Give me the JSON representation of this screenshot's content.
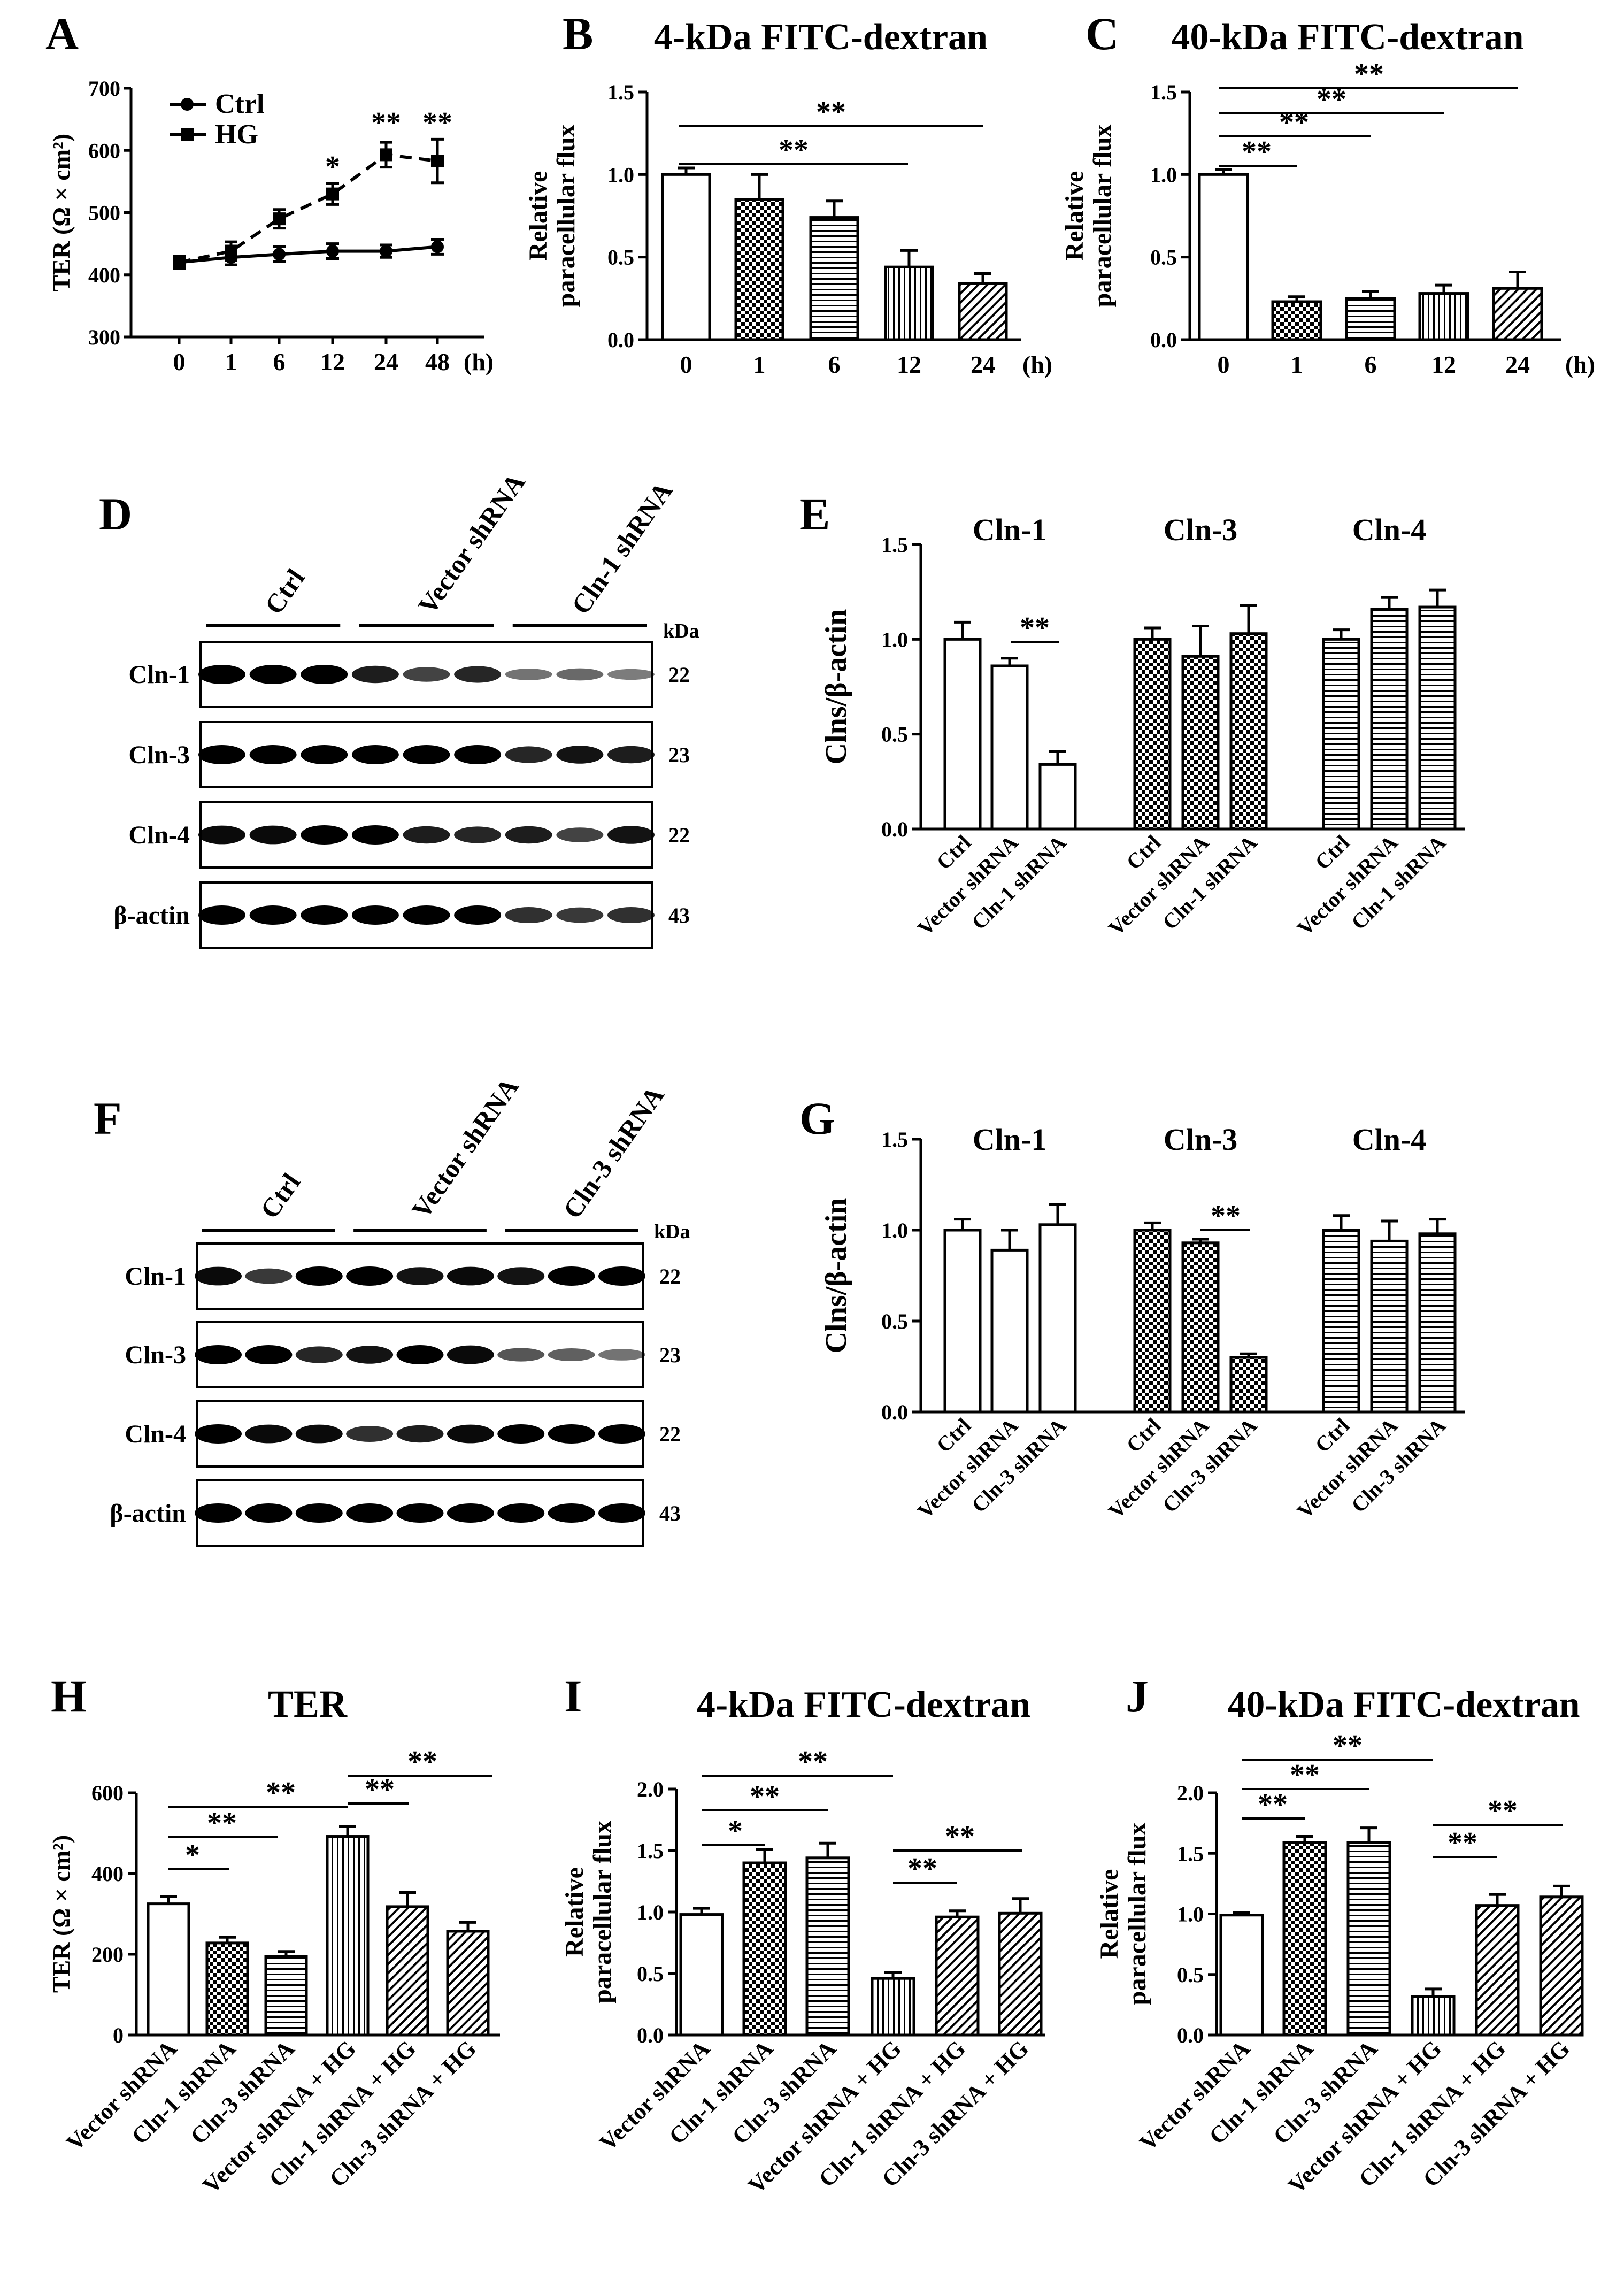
{
  "colors": {
    "ink": "#000000",
    "background": "#ffffff"
  },
  "chart_data": [
    {
      "panel": "A",
      "type": "line",
      "title": "",
      "ylabel": "TER (Ω × cm²)",
      "xlabel": "",
      "x_unit": "(h)",
      "categories": [
        "0",
        "1",
        "6",
        "12",
        "24",
        "48"
      ],
      "ylim": [
        300,
        700
      ],
      "yticks": [
        "300",
        "400",
        "500",
        "600",
        "700"
      ],
      "series": [
        {
          "name": "Ctrl",
          "style": "solid",
          "marker": "circle",
          "values": [
            420,
            428,
            433,
            438,
            438,
            445
          ],
          "errors": [
            10,
            12,
            12,
            12,
            10,
            12
          ]
        },
        {
          "name": "HG",
          "style": "dashed",
          "marker": "square",
          "values": [
            420,
            438,
            490,
            530,
            593,
            583
          ],
          "errors": [
            10,
            15,
            15,
            17,
            20,
            35
          ]
        }
      ],
      "significance": [
        "*",
        "**",
        "**"
      ]
    },
    {
      "panel": "B",
      "type": "bar",
      "title": "4-kDa FITC-dextran",
      "ylabel": "Relative paracellular flux",
      "x_unit": "(h)",
      "categories": [
        "0",
        "1",
        "6",
        "12",
        "24"
      ],
      "values": [
        1.0,
        0.85,
        0.74,
        0.44,
        0.34
      ],
      "errors": [
        0.04,
        0.15,
        0.1,
        0.1,
        0.06
      ],
      "ylim": [
        0,
        1.5
      ],
      "yticks": [
        "0.0",
        "0.5",
        "1.0",
        "1.5"
      ],
      "significance": [
        "**",
        "**"
      ]
    },
    {
      "panel": "C",
      "type": "bar",
      "title": "40-kDa FITC-dextran",
      "ylabel": "Relative paracellular flux",
      "x_unit": "(h)",
      "categories": [
        "0",
        "1",
        "6",
        "12",
        "24"
      ],
      "values": [
        1.0,
        0.23,
        0.25,
        0.28,
        0.31
      ],
      "errors": [
        0.03,
        0.03,
        0.04,
        0.05,
        0.1
      ],
      "ylim": [
        0,
        1.5
      ],
      "yticks": [
        "0.0",
        "0.5",
        "1.0",
        "1.5"
      ],
      "significance": [
        "**",
        "**",
        "**",
        "**"
      ]
    },
    {
      "panel": "E",
      "type": "bar",
      "ylabel": "Clns/β-actin",
      "groups": [
        "Cln-1",
        "Cln-3",
        "Cln-4"
      ],
      "categories": [
        "Ctrl",
        "Vector shRNA",
        "Cln-1 shRNA",
        "Ctrl",
        "Vector shRNA",
        "Cln-1 shRNA",
        "Ctrl",
        "Vector shRNA",
        "Cln-1 shRNA"
      ],
      "values": [
        1.0,
        0.86,
        0.34,
        1.0,
        0.91,
        1.03,
        1.0,
        1.16,
        1.17
      ],
      "errors": [
        0.09,
        0.04,
        0.07,
        0.06,
        0.16,
        0.15,
        0.05,
        0.06,
        0.09
      ],
      "ylim": [
        0,
        1.5
      ],
      "yticks": [
        "0.0",
        "0.5",
        "1.0",
        "1.5"
      ],
      "significance": [
        "**"
      ]
    },
    {
      "panel": "G",
      "type": "bar",
      "ylabel": "Clns/β-actin",
      "groups": [
        "Cln-1",
        "Cln-3",
        "Cln-4"
      ],
      "categories": [
        "Ctrl",
        "Vector shRNA",
        "Cln-3 shRNA",
        "Ctrl",
        "Vector shRNA",
        "Cln-3 shRNA",
        "Ctrl",
        "Vector shRNA",
        "Cln-3 shRNA"
      ],
      "values": [
        1.0,
        0.89,
        1.03,
        1.0,
        0.93,
        0.3,
        1.0,
        0.94,
        0.98
      ],
      "errors": [
        0.06,
        0.11,
        0.11,
        0.04,
        0.02,
        0.02,
        0.08,
        0.11,
        0.08
      ],
      "ylim": [
        0,
        1.5
      ],
      "yticks": [
        "0.0",
        "0.5",
        "1.0",
        "1.5"
      ],
      "significance": [
        "**"
      ]
    },
    {
      "panel": "H",
      "type": "bar",
      "title": "TER",
      "ylabel": "TER (Ω × cm²)",
      "categories": [
        "Vector shRNA",
        "Cln-1 shRNA",
        "Cln-3 shRNA",
        "Vector shRNA + HG",
        "Cln-1 shRNA + HG",
        "Cln-3 shRNA + HG"
      ],
      "values": [
        325,
        228,
        195,
        492,
        318,
        257
      ],
      "errors": [
        18,
        14,
        12,
        25,
        35,
        22
      ],
      "ylim": [
        0,
        600
      ],
      "yticks": [
        "0",
        "200",
        "400",
        "600"
      ],
      "significance": [
        "*",
        "**",
        "**",
        "**",
        "**"
      ]
    },
    {
      "panel": "I",
      "type": "bar",
      "title": "4-kDa FITC-dextran",
      "ylabel": "Relative paracellular flux",
      "categories": [
        "Vector shRNA",
        "Cln-1 shRNA",
        "Cln-3 shRNA",
        "Vector shRNA + HG",
        "Cln-1 shRNA + HG",
        "Cln-3 shRNA + HG"
      ],
      "values": [
        0.98,
        1.4,
        1.44,
        0.46,
        0.96,
        0.99
      ],
      "errors": [
        0.05,
        0.11,
        0.12,
        0.05,
        0.05,
        0.12
      ],
      "ylim": [
        0,
        2.0
      ],
      "yticks": [
        "0.0",
        "0.5",
        "1.0",
        "1.5",
        "2.0"
      ],
      "significance": [
        "*",
        "**",
        "**",
        "**",
        "**"
      ]
    },
    {
      "panel": "J",
      "type": "bar",
      "title": "40-kDa FITC-dextran",
      "ylabel": "Relative paracellular flux",
      "categories": [
        "Vector shRNA",
        "Cln-1 shRNA",
        "Cln-3 shRNA",
        "Vector shRNA + HG",
        "Cln-1 shRNA + HG",
        "Cln-3 shRNA + HG"
      ],
      "values": [
        0.99,
        1.59,
        1.59,
        0.32,
        1.07,
        1.14
      ],
      "errors": [
        0.02,
        0.05,
        0.12,
        0.06,
        0.09,
        0.09
      ],
      "ylim": [
        0,
        2.0
      ],
      "yticks": [
        "0.0",
        "0.5",
        "1.0",
        "1.5",
        "2.0"
      ],
      "significance": [
        "**",
        "**",
        "**",
        "**",
        "**"
      ]
    }
  ],
  "blots": [
    {
      "panel": "D",
      "kda_label": "kDa",
      "groups": [
        "Ctrl",
        "Vector shRNA",
        "Cln-1 shRNA"
      ],
      "rows": [
        {
          "label": "Cln-1",
          "kda": "22",
          "intensity": [
            1,
            1,
            1,
            0.85,
            0.65,
            0.8,
            0.4,
            0.45,
            0.35
          ]
        },
        {
          "label": "Cln-3",
          "kda": "23",
          "intensity": [
            1,
            1,
            1,
            1,
            1,
            1,
            0.8,
            0.9,
            0.85
          ]
        },
        {
          "label": "Cln-4",
          "kda": "22",
          "intensity": [
            0.95,
            0.95,
            1,
            1,
            0.85,
            0.8,
            0.85,
            0.65,
            0.9
          ]
        },
        {
          "label": "β-actin",
          "kda": "43",
          "intensity": [
            1,
            1,
            1,
            1,
            1,
            1,
            0.75,
            0.7,
            0.75
          ]
        }
      ]
    },
    {
      "panel": "F",
      "kda_label": "kDa",
      "groups": [
        "Ctrl",
        "Vector shRNA",
        "Cln-3 shRNA"
      ],
      "rows": [
        {
          "label": "Cln-1",
          "kda": "22",
          "intensity": [
            0.95,
            0.7,
            1,
            1,
            0.9,
            0.95,
            0.9,
            1,
            1
          ]
        },
        {
          "label": "Cln-3",
          "kda": "23",
          "intensity": [
            1,
            1,
            0.8,
            0.9,
            1,
            0.95,
            0.55,
            0.5,
            0.4
          ]
        },
        {
          "label": "Cln-4",
          "kda": "22",
          "intensity": [
            1,
            0.95,
            0.95,
            0.75,
            0.85,
            0.95,
            1,
            1,
            1
          ]
        },
        {
          "label": "β-actin",
          "kda": "43",
          "intensity": [
            1,
            1,
            1,
            1,
            1,
            1,
            1,
            1,
            1
          ]
        }
      ]
    }
  ]
}
